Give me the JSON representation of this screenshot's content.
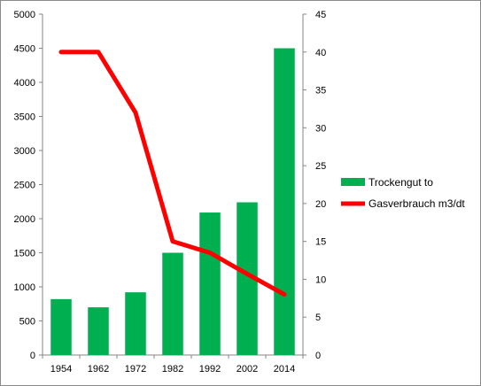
{
  "chart_data": {
    "type": "bar+line",
    "categories": [
      "1954",
      "1962",
      "1972",
      "1982",
      "1992",
      "2002",
      "2014"
    ],
    "series": [
      {
        "name": "Trockengut to",
        "type": "bar",
        "axis": "left",
        "color": "#00b050",
        "values": [
          820,
          700,
          920,
          1500,
          2090,
          2240,
          4500
        ]
      },
      {
        "name": "Gasverbrauch m3/dt",
        "type": "line",
        "axis": "right",
        "color": "#ff0000",
        "values": [
          40,
          40,
          32,
          15,
          13.5,
          10.7,
          8
        ]
      }
    ],
    "y_left": {
      "min": 0,
      "max": 5000,
      "step": 500,
      "ticks": [
        "0",
        "500",
        "1000",
        "1500",
        "2000",
        "2500",
        "3000",
        "3500",
        "4000",
        "4500",
        "5000"
      ]
    },
    "y_right": {
      "min": 0,
      "max": 45,
      "step": 5,
      "ticks": [
        "0",
        "5",
        "10",
        "15",
        "20",
        "25",
        "30",
        "35",
        "40",
        "45"
      ]
    },
    "grid": false,
    "legend_position": "right"
  }
}
